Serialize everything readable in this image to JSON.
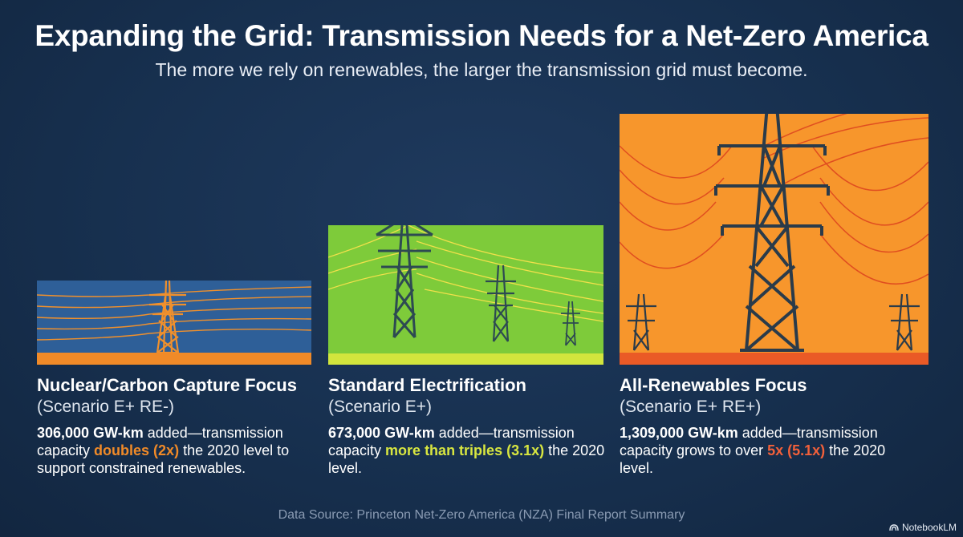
{
  "header": {
    "title": "Expanding the Grid: Transmission Needs for a Net-Zero America",
    "subtitle": "The more we rely on renewables, the larger the transmission grid must become."
  },
  "scenarios": [
    {
      "title": "Nuclear/Carbon Capture Focus",
      "scenario": "(Scenario E+ RE-)",
      "amount": "306,000 GW-km",
      "text_1": " added—transmission capacity ",
      "highlight": "doubles (2x)",
      "text_2": " the 2020 level to support constrained renewables.",
      "multiplier": 2,
      "colors": {
        "panel": "#2e5f98",
        "accent": "#f08a28"
      }
    },
    {
      "title": "Standard Electrification",
      "scenario": "(Scenario E+)",
      "amount": "673,000 GW-km",
      "text_1": " added—transmission capacity ",
      "highlight": "more than triples (3.1x)",
      "text_2": " the 2020 level.",
      "multiplier": 3.1,
      "colors": {
        "panel": "#7ecb3a",
        "accent": "#d8e640"
      }
    },
    {
      "title": "All-Renewables Focus",
      "scenario": "(Scenario E+ RE+)",
      "amount": "1,309,000 GW-km",
      "text_1": " added—transmission capacity grows to over ",
      "highlight": "5x (5.1x)",
      "text_2": " the 2020 level.",
      "multiplier": 5.1,
      "colors": {
        "panel": "#f7962c",
        "accent": "#ea5a26"
      }
    }
  ],
  "footer": {
    "source": "Data Source: Princeton Net-Zero America (NZA) Final Report Summary",
    "brand": "NotebookLM"
  }
}
